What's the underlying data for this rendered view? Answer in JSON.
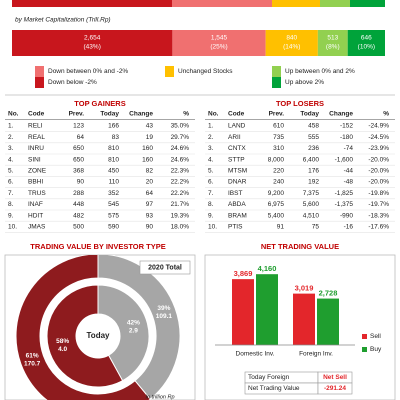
{
  "market_cap": {
    "subtitle": "by Market Capitalization (Trill.Rp)",
    "segments": [
      {
        "value": "2,654",
        "percent": 43,
        "percent_label": "(43%)",
        "color": "#c8161d"
      },
      {
        "value": "1,545",
        "percent": 25,
        "percent_label": "(25%)",
        "color": "#f07070"
      },
      {
        "value": "840",
        "percent": 14,
        "percent_label": "(14%)",
        "color": "#ffc000"
      },
      {
        "value": "513",
        "percent": 8,
        "percent_label": "(8%)",
        "color": "#92d050"
      },
      {
        "value": "646",
        "percent": 10,
        "percent_label": "(10%)",
        "color": "#00a33a"
      }
    ]
  },
  "legend": [
    {
      "label": "Down between 0% and -2%",
      "color": "#f07070"
    },
    {
      "label": "Down below -2%",
      "color": "#c8161d"
    },
    {
      "label": "Unchanged Stocks",
      "color": "#ffc000"
    },
    {
      "label": "Up between 0% and 2%",
      "color": "#92d050"
    },
    {
      "label": "Up above 2%",
      "color": "#00a33a"
    }
  ],
  "top_gainers": {
    "title": "TOP GAINERS",
    "columns": [
      "No.",
      "Code",
      "Prev.",
      "Today",
      "Change",
      "%"
    ],
    "rows": [
      [
        "1.",
        "RELI",
        "123",
        "166",
        "43",
        "35.0%"
      ],
      [
        "2.",
        "REAL",
        "64",
        "83",
        "19",
        "29.7%"
      ],
      [
        "3.",
        "INRU",
        "650",
        "810",
        "160",
        "24.6%"
      ],
      [
        "4.",
        "SINI",
        "650",
        "810",
        "160",
        "24.6%"
      ],
      [
        "5.",
        "ZONE",
        "368",
        "450",
        "82",
        "22.3%"
      ],
      [
        "6.",
        "BBHI",
        "90",
        "110",
        "20",
        "22.2%"
      ],
      [
        "7.",
        "TRUS",
        "288",
        "352",
        "64",
        "22.2%"
      ],
      [
        "8.",
        "INAF",
        "448",
        "545",
        "97",
        "21.7%"
      ],
      [
        "9.",
        "HDIT",
        "482",
        "575",
        "93",
        "19.3%"
      ],
      [
        "10.",
        "JMAS",
        "500",
        "590",
        "90",
        "18.0%"
      ]
    ]
  },
  "top_losers": {
    "title": "TOP LOSERS",
    "columns": [
      "No.",
      "Code",
      "Prev.",
      "Today",
      "Change",
      "%"
    ],
    "rows": [
      [
        "1.",
        "LAND",
        "610",
        "458",
        "-152",
        "-24.9%"
      ],
      [
        "2.",
        "ARII",
        "735",
        "555",
        "-180",
        "-24.5%"
      ],
      [
        "3.",
        "CNTX",
        "310",
        "236",
        "-74",
        "-23.9%"
      ],
      [
        "4.",
        "STTP",
        "8,000",
        "6,400",
        "-1,600",
        "-20.0%"
      ],
      [
        "5.",
        "MTSM",
        "220",
        "176",
        "-44",
        "-20.0%"
      ],
      [
        "6.",
        "DNAR",
        "240",
        "192",
        "-48",
        "-20.0%"
      ],
      [
        "7.",
        "IBST",
        "9,200",
        "7,375",
        "-1,825",
        "-19.8%"
      ],
      [
        "8.",
        "ABDA",
        "6,975",
        "5,600",
        "-1,375",
        "-19.7%"
      ],
      [
        "9.",
        "BRAM",
        "5,400",
        "4,510",
        "-990",
        "-18.3%"
      ],
      [
        "10.",
        "PTIS",
        "91",
        "75",
        "-16",
        "-17.6%"
      ]
    ]
  },
  "investor_type": {
    "title": "TRADING VALUE BY INVESTOR TYPE",
    "total_label": "2020 Total",
    "center_label": "Today",
    "unit": "In trillion Rp",
    "colors": [
      "#a6a6a6",
      "#8e1b1e"
    ],
    "rings": [
      {
        "values": [
          39,
          61
        ],
        "value_labels": [
          "39%",
          "61%"
        ],
        "amounts": [
          "109.1",
          "170.7"
        ]
      },
      {
        "values": [
          42,
          58
        ],
        "value_labels": [
          "42%",
          "58%"
        ],
        "amounts": [
          "2.9",
          "4.0"
        ]
      }
    ]
  },
  "chart_data": {
    "type": "bar",
    "title": "NET TRADING VALUE",
    "categories": [
      "Domestic Inv.",
      "Foreign Inv."
    ],
    "series": [
      {
        "name": "Sell",
        "color": "#e3262b",
        "values": [
          3869,
          3019
        ],
        "value_labels": [
          "3,869",
          "3,019"
        ]
      },
      {
        "name": "Buy",
        "color": "#1f9e2f",
        "values": [
          4160,
          2728
        ],
        "value_labels": [
          "4,160",
          "2,728"
        ]
      }
    ],
    "ylim": [
      0,
      4700
    ],
    "summary": [
      [
        "Today Foreign",
        "Net Sell"
      ],
      [
        "Net Trading Value",
        "-291.24"
      ]
    ]
  }
}
